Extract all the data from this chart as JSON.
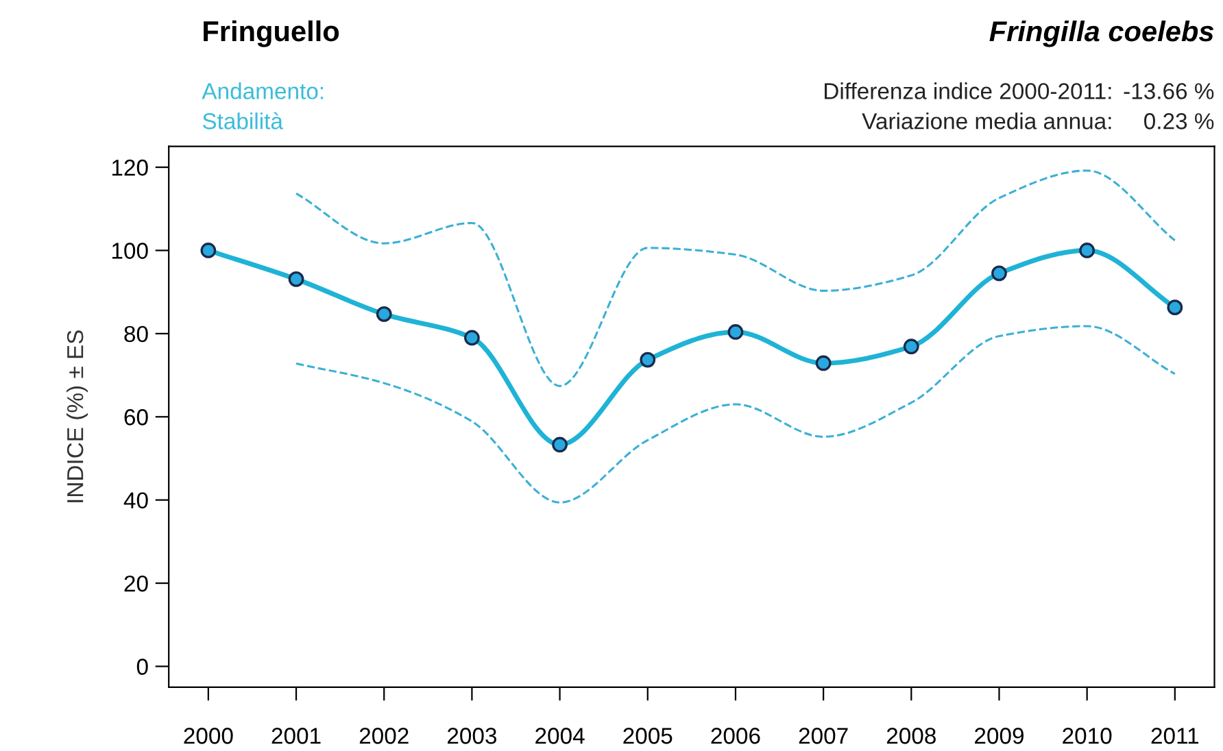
{
  "chart_data": {
    "type": "line",
    "title": "Fringuello",
    "subtitle": "Fringilla coelebs",
    "ylabel": "INDICE (%) ± ES",
    "annotations": [
      "Andamento:",
      "Stabilità",
      "Differenza indice 2000-2011:",
      "-13.66 %",
      "Variazione media annua:",
      "0.23 %"
    ],
    "categories": [
      "2000",
      "2001",
      "2002",
      "2003",
      "2004",
      "2005",
      "2006",
      "2007",
      "2008",
      "2009",
      "2010",
      "2011"
    ],
    "series": [
      {
        "color": "#1fb3d6",
        "values": [
          100,
          93.1,
          84.7,
          79.0,
          53.3,
          73.7,
          80.4,
          72.9,
          76.9,
          94.5,
          100,
          86.3
        ]
      },
      {
        "color": "#3bb0d4",
        "line_style": "dashed",
        "marker": "none",
        "values": [
          null,
          113.7,
          101.7,
          106.6,
          67.4,
          100.6,
          99.0,
          90.3,
          94.0,
          112.6,
          119.2,
          102.4
        ]
      },
      {
        "color": "#3bb0d4",
        "line_style": "dashed",
        "marker": "none",
        "values": [
          null,
          72.8,
          68.1,
          58.9,
          39.4,
          54.4,
          63.0,
          55.2,
          63.4,
          79.4,
          81.8,
          70.3
        ]
      }
    ],
    "ylim": [
      -5,
      125
    ],
    "yticks": [
      0,
      20,
      40,
      60,
      80,
      100,
      120
    ],
    "grid": false,
    "legend": false,
    "marker": "circle",
    "line_style": "solid"
  }
}
